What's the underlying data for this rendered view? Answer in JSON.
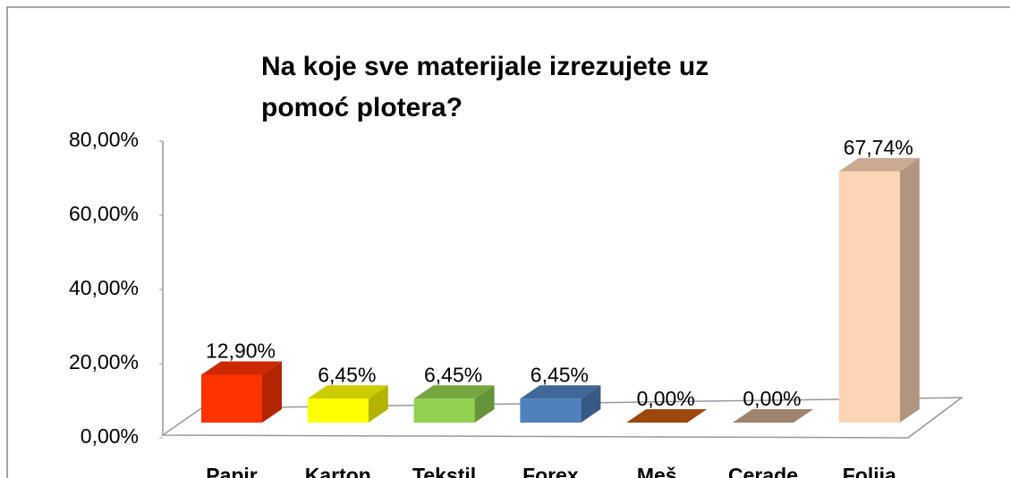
{
  "chart_data": {
    "type": "bar3d",
    "title": "Na koje sve materijale izrezujete uz pomoć plotera?",
    "categories": [
      "Papir",
      "Karton",
      "Tekstil",
      "Forex",
      "Meš",
      "Cerade",
      "Folija"
    ],
    "values": [
      12.9,
      6.45,
      6.45,
      6.45,
      0,
      0,
      67.74
    ],
    "value_labels": [
      "12,90%",
      "6,45%",
      "6,45%",
      "6,45%",
      "0,00%",
      "0,00%",
      "67,74%"
    ],
    "colors": [
      "#ff3300",
      "#ffff00",
      "#92d050",
      "#4f81bd",
      "#c55a11",
      "#c9a48a",
      "#fcd5b5"
    ],
    "ylim": [
      0,
      80
    ],
    "yticks": [
      {
        "value": 0,
        "label": "0,00%"
      },
      {
        "value": 20,
        "label": "20,00%"
      },
      {
        "value": 40,
        "label": "40,00%"
      },
      {
        "value": 60,
        "label": "60,00%"
      },
      {
        "value": 80,
        "label": "80,00%"
      }
    ],
    "grid": false
  }
}
